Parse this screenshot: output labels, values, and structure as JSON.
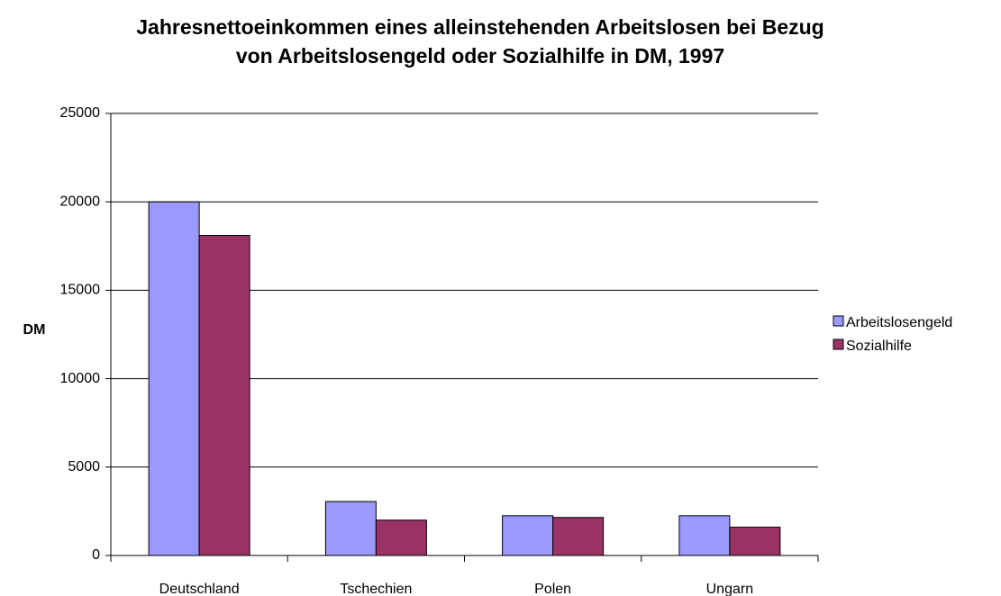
{
  "chart_data": {
    "type": "bar",
    "title": [
      "Jahresnettoeinkommen eines alleinstehenden Arbeitslosen bei Bezug",
      "von Arbeitslosengeld oder Sozialhilfe in DM, 1997"
    ],
    "y_label": "DM",
    "categories": [
      "Deutschland",
      "Tschechien",
      "Polen",
      "Ungarn"
    ],
    "series": [
      {
        "name": "Arbeitslosengeld",
        "color": "#9999ff",
        "values": [
          20000,
          3050,
          2250,
          2250
        ]
      },
      {
        "name": "Sozialhilfe",
        "color": "#993366",
        "values": [
          18100,
          2000,
          2150,
          1600
        ]
      }
    ],
    "ylim": [
      0,
      25000
    ],
    "yticks": [
      0,
      5000,
      10000,
      15000,
      20000,
      25000
    ],
    "grid": true,
    "legend": "right"
  }
}
